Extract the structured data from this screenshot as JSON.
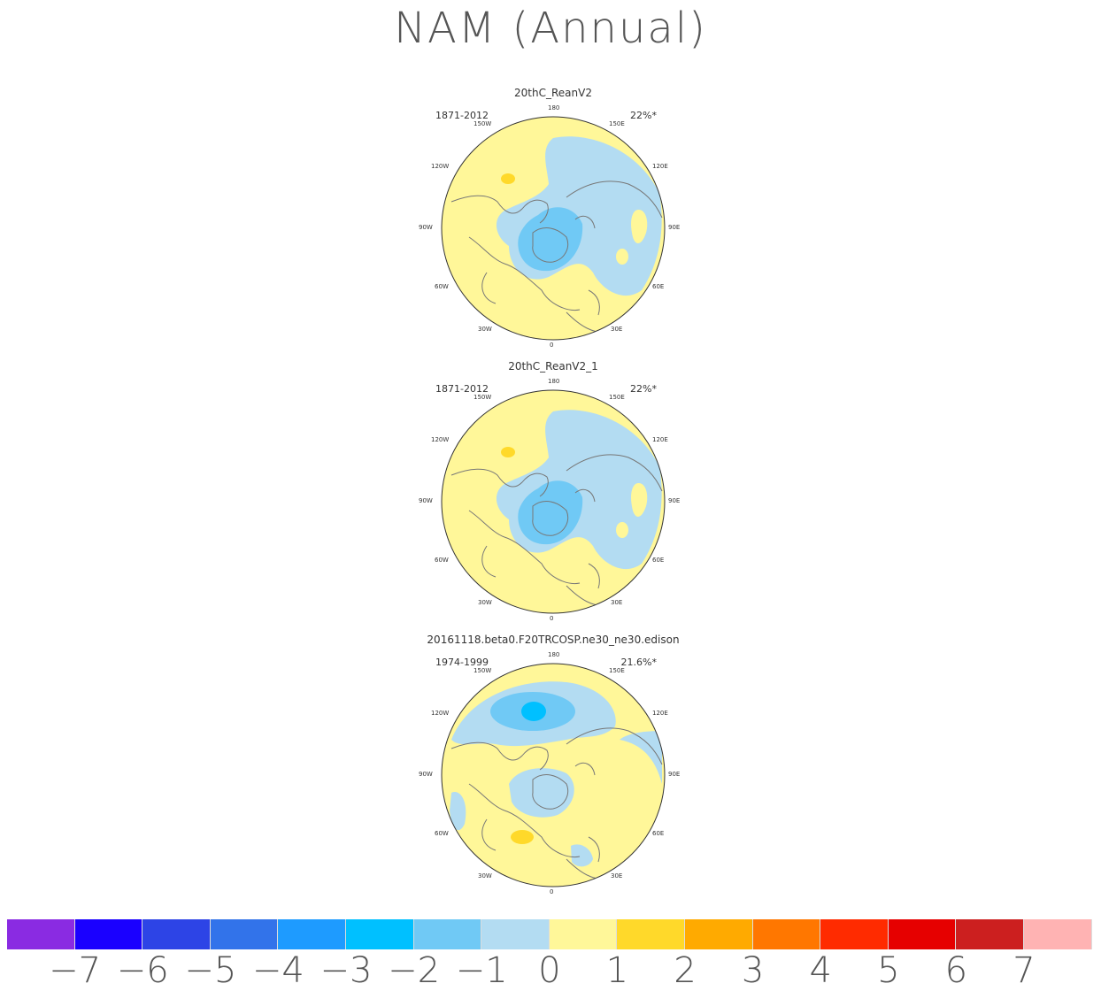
{
  "title": "NAM (Annual)",
  "panels": [
    {
      "name": "20thC_ReanV2",
      "period": "1871-2012",
      "variance": "22%*"
    },
    {
      "name": "20thC_ReanV2_1",
      "period": "1871-2012",
      "variance": "22%*"
    },
    {
      "name": "20161118.beta0.F20TRCOSP.ne30_ne30.edison",
      "period": "1974-1999",
      "variance": "21.6%*"
    }
  ],
  "longitude_labels": {
    "top": "180",
    "bottom": "0",
    "left": [
      "150W",
      "120W",
      "90W",
      "60W",
      "30W"
    ],
    "right": [
      "150E",
      "120E",
      "90E",
      "60E",
      "30E"
    ]
  },
  "colorbar": {
    "colors": [
      "#8a2be2",
      "#1a00ff",
      "#2d44e6",
      "#3273ea",
      "#1e9bff",
      "#00c0ff",
      "#70c9f5",
      "#b3dcf2",
      "#fff799",
      "#ffd92a",
      "#ffaa00",
      "#ff7700",
      "#ff2b00",
      "#e60000",
      "#cc1f1f",
      "#ffb3b3"
    ],
    "labels": [
      "-7",
      "-6",
      "-5",
      "-4",
      "-3",
      "-2",
      "-1",
      "0",
      "1",
      "2",
      "3",
      "4",
      "5",
      "6",
      "7"
    ]
  },
  "colors": {
    "land_outline": "#777777",
    "map_yellow": "#fff799",
    "map_lightblue": "#b3dcf2",
    "map_blue": "#70c9f5",
    "map_midblue": "#4fb0ef",
    "map_deepblue": "#00c0ff",
    "map_orange": "#ffd92a"
  }
}
